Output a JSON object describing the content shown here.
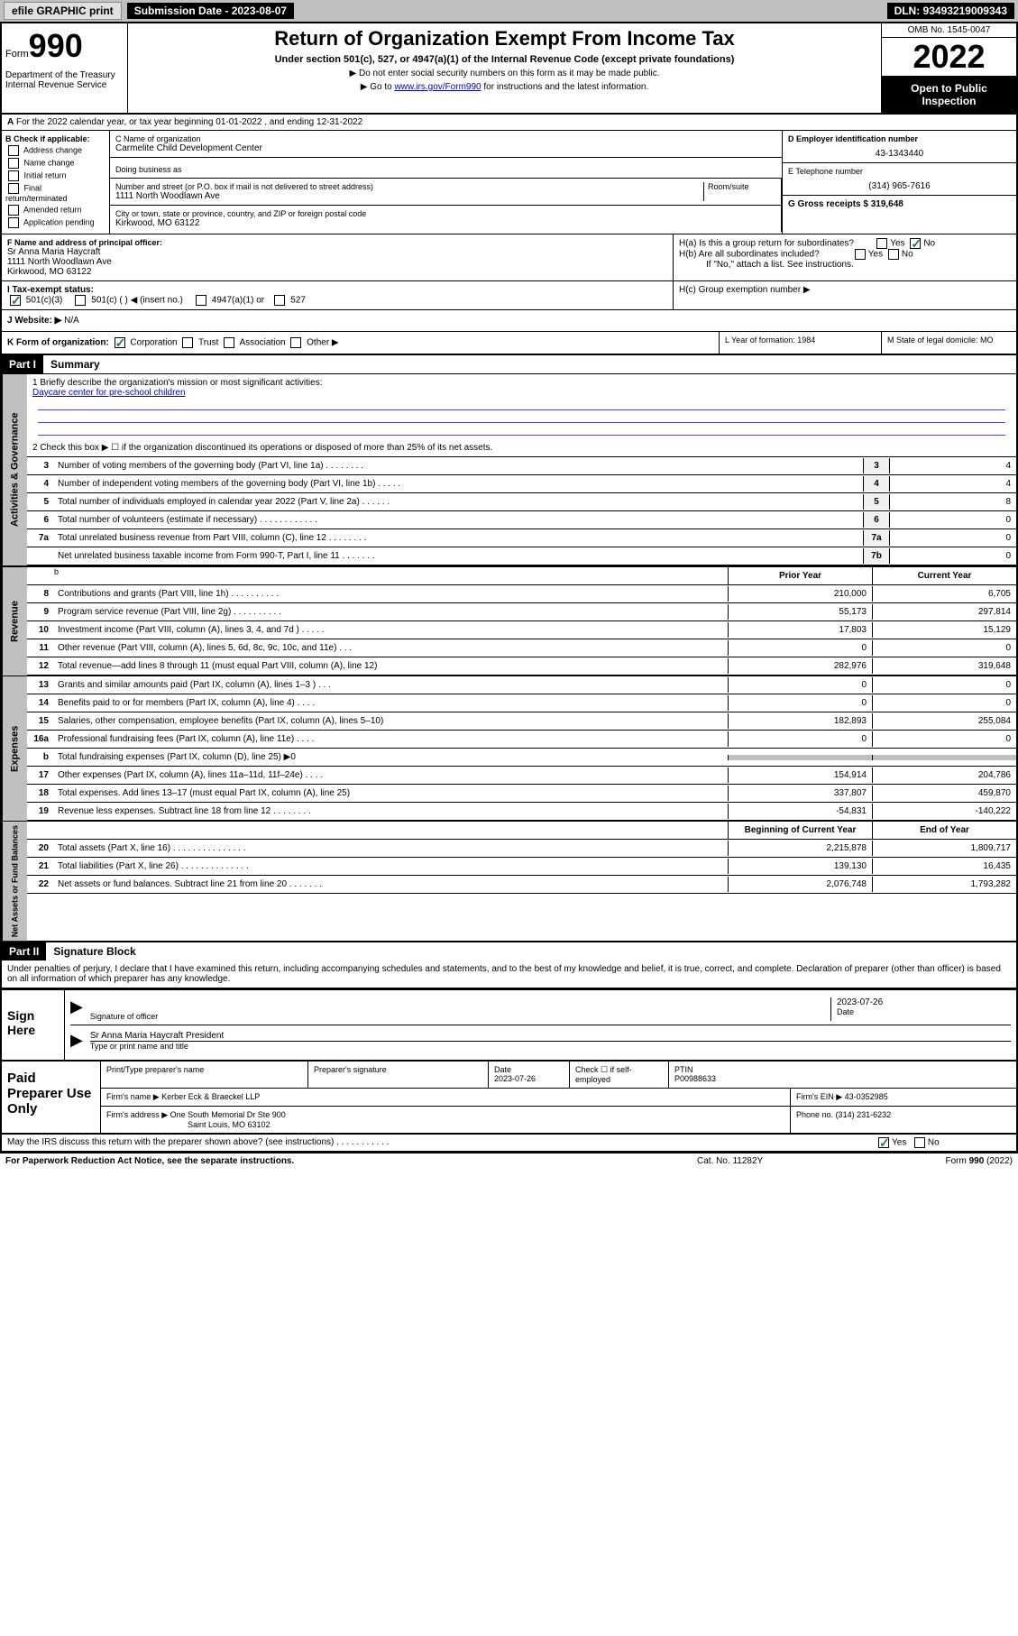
{
  "topbar": {
    "efile": "efile GRAPHIC print",
    "submission": "Submission Date - 2023-08-07",
    "dln": "DLN: 93493219009343"
  },
  "header": {
    "form_label": "Form",
    "form_num": "990",
    "title": "Return of Organization Exempt From Income Tax",
    "subtitle": "Under section 501(c), 527, or 4947(a)(1) of the Internal Revenue Code (except private foundations)",
    "note1": "▶ Do not enter social security numbers on this form as it may be made public.",
    "note2_pre": "▶ Go to ",
    "note2_link": "www.irs.gov/Form990",
    "note2_post": " for instructions and the latest information.",
    "dept": "Department of the Treasury\nInternal Revenue Service",
    "omb": "OMB No. 1545-0047",
    "year": "2022",
    "inspection": "Open to Public Inspection"
  },
  "row_a": {
    "label": "A",
    "text": "For the 2022 calendar year, or tax year beginning 01-01-2022    , and ending 12-31-2022"
  },
  "section_b": {
    "label": "B Check if applicable:",
    "items": [
      "Address change",
      "Name change",
      "Initial return",
      "Final return/terminated",
      "Amended return",
      "Application pending"
    ]
  },
  "section_c": {
    "name_label": "C Name of organization",
    "name_value": "Carmelite Child Development Center",
    "dba_label": "Doing business as",
    "street_label": "Number and street (or P.O. box if mail is not delivered to street address)",
    "street_value": "1111 North Woodlawn Ave",
    "room_label": "Room/suite",
    "city_label": "City or town, state or province, country, and ZIP or foreign postal code",
    "city_value": "Kirkwood, MO  63122"
  },
  "section_d": {
    "label": "D Employer identification number",
    "value": "43-1343440"
  },
  "section_e": {
    "label": "E Telephone number",
    "value": "(314) 965-7616"
  },
  "section_g": {
    "label": "G Gross receipts $ 319,648"
  },
  "section_f": {
    "label": "F Name and address of principal officer:",
    "name": "Sr Anna Maria Haycraft",
    "street": "1111 North Woodlawn Ave",
    "city": "Kirkwood, MO  63122"
  },
  "section_h": {
    "ha": "H(a)  Is this a group return for subordinates?",
    "hb": "H(b)  Are all subordinates included?",
    "hb_note": "If \"No,\" attach a list. See instructions.",
    "hc": "H(c)  Group exemption number ▶",
    "yes": "Yes",
    "no": "No"
  },
  "section_i": {
    "label": "I    Tax-exempt status:",
    "opts": [
      "501(c)(3)",
      "501(c) (  ) ◀ (insert no.)",
      "4947(a)(1) or",
      "527"
    ]
  },
  "section_j": {
    "label": "J   Website: ▶",
    "value": "N/A"
  },
  "section_k": {
    "label": "K Form of organization:",
    "opts": [
      "Corporation",
      "Trust",
      "Association",
      "Other ▶"
    ]
  },
  "section_l": {
    "label": "L Year of formation: 1984"
  },
  "section_m": {
    "label": "M State of legal domicile: MO"
  },
  "part1": {
    "header": "Part I",
    "title": "Summary",
    "line1_label": "1   Briefly describe the organization's mission or most significant activities:",
    "line1_value": "Daycare center for pre-school children",
    "line2": "2   Check this box ▶ ☐  if the organization discontinued its operations or disposed of more than 25% of its net assets.",
    "governance_label": "Activities & Governance",
    "revenue_label": "Revenue",
    "expenses_label": "Expenses",
    "netassets_label": "Net Assets or Fund Balances",
    "prior_year": "Prior Year",
    "current_year": "Current Year",
    "begin_year": "Beginning of Current Year",
    "end_year": "End of Year",
    "gov_lines": [
      {
        "n": "3",
        "d": "Number of voting members of the governing body (Part VI, line 1a)   .   .   .   .   .   .   .   .",
        "an": "3",
        "av": "4"
      },
      {
        "n": "4",
        "d": "Number of independent voting members of the governing body (Part VI, line 1b)   .   .   .   .   .",
        "an": "4",
        "av": "4"
      },
      {
        "n": "5",
        "d": "Total number of individuals employed in calendar year 2022 (Part V, line 2a)   .   .   .   .   .   .",
        "an": "5",
        "av": "8"
      },
      {
        "n": "6",
        "d": "Total number of volunteers (estimate if necessary)   .   .   .   .   .   .   .   .   .   .   .   .",
        "an": "6",
        "av": "0"
      },
      {
        "n": "7a",
        "d": "Total unrelated business revenue from Part VIII, column (C), line 12   .   .   .   .   .   .   .   .",
        "an": "7a",
        "av": "0"
      },
      {
        "n": "",
        "d": "Net unrelated business taxable income from Form 990-T, Part I, line 11   .   .   .   .   .   .   .",
        "an": "7b",
        "av": "0"
      }
    ],
    "rev_lines": [
      {
        "n": "8",
        "d": "Contributions and grants (Part VIII, line 1h)   .   .   .   .   .   .   .   .   .   .",
        "p": "210,000",
        "c": "6,705"
      },
      {
        "n": "9",
        "d": "Program service revenue (Part VIII, line 2g)   .   .   .   .   .   .   .   .   .   .",
        "p": "55,173",
        "c": "297,814"
      },
      {
        "n": "10",
        "d": "Investment income (Part VIII, column (A), lines 3, 4, and 7d )   .   .   .   .   .",
        "p": "17,803",
        "c": "15,129"
      },
      {
        "n": "11",
        "d": "Other revenue (Part VIII, column (A), lines 5, 6d, 8c, 9c, 10c, and 11e)   .   .   .",
        "p": "0",
        "c": "0"
      },
      {
        "n": "12",
        "d": "Total revenue—add lines 8 through 11 (must equal Part VIII, column (A), line 12)",
        "p": "282,976",
        "c": "319,648"
      }
    ],
    "exp_lines": [
      {
        "n": "13",
        "d": "Grants and similar amounts paid (Part IX, column (A), lines 1–3 )   .   .   .",
        "p": "0",
        "c": "0"
      },
      {
        "n": "14",
        "d": "Benefits paid to or for members (Part IX, column (A), line 4)   .   .   .   .",
        "p": "0",
        "c": "0"
      },
      {
        "n": "15",
        "d": "Salaries, other compensation, employee benefits (Part IX, column (A), lines 5–10)",
        "p": "182,893",
        "c": "255,084"
      },
      {
        "n": "16a",
        "d": "Professional fundraising fees (Part IX, column (A), line 11e)   .   .   .   .",
        "p": "0",
        "c": "0"
      },
      {
        "n": "b",
        "d": "Total fundraising expenses (Part IX, column (D), line 25) ▶0",
        "p": "",
        "c": "",
        "gray": true
      },
      {
        "n": "17",
        "d": "Other expenses (Part IX, column (A), lines 11a–11d, 11f–24e)   .   .   .   .",
        "p": "154,914",
        "c": "204,786"
      },
      {
        "n": "18",
        "d": "Total expenses. Add lines 13–17 (must equal Part IX, column (A), line 25)",
        "p": "337,807",
        "c": "459,870"
      },
      {
        "n": "19",
        "d": "Revenue less expenses. Subtract line 18 from line 12   .   .   .   .   .   .   .   .",
        "p": "-54,831",
        "c": "-140,222"
      }
    ],
    "na_lines": [
      {
        "n": "20",
        "d": "Total assets (Part X, line 16)   .   .   .   .   .   .   .   .   .   .   .   .   .   .   .",
        "p": "2,215,878",
        "c": "1,809,717"
      },
      {
        "n": "21",
        "d": "Total liabilities (Part X, line 26)   .   .   .   .   .   .   .   .   .   .   .   .   .   .",
        "p": "139,130",
        "c": "16,435"
      },
      {
        "n": "22",
        "d": "Net assets or fund balances. Subtract line 21 from line 20   .   .   .   .   .   .   .",
        "p": "2,076,748",
        "c": "1,793,282"
      }
    ]
  },
  "part2": {
    "header": "Part II",
    "title": "Signature Block",
    "declaration": "Under penalties of perjury, I declare that I have examined this return, including accompanying schedules and statements, and to the best of my knowledge and belief, it is true, correct, and complete. Declaration of preparer (other than officer) is based on all information of which preparer has any knowledge."
  },
  "sign": {
    "label": "Sign Here",
    "sig_officer": "Signature of officer",
    "date_label": "Date",
    "date_value": "2023-07-26",
    "name_title": "Sr Anna Maria Haycraft  President",
    "name_label": "Type or print name and title"
  },
  "paid": {
    "label": "Paid Preparer Use Only",
    "print_label": "Print/Type preparer's name",
    "sig_label": "Preparer's signature",
    "date_label": "Date",
    "date_value": "2023-07-26",
    "check_label": "Check ☐ if self-employed",
    "ptin_label": "PTIN",
    "ptin_value": "P00988633",
    "firm_name_label": "Firm's name    ▶",
    "firm_name_value": "Kerber Eck & Braeckel LLP",
    "firm_ein_label": "Firm's EIN ▶",
    "firm_ein_value": "43-0352985",
    "firm_addr_label": "Firm's address ▶",
    "firm_addr_value": "One South Memorial Dr Ste 900",
    "firm_city": "Saint Louis, MO  63102",
    "phone_label": "Phone no.",
    "phone_value": "(314) 231-6232"
  },
  "footer": {
    "discuss": "May the IRS discuss this return with the preparer shown above? (see instructions)   .   .   .   .   .   .   .   .   .   .   .",
    "yes": "Yes",
    "no": "No",
    "paperwork": "For Paperwork Reduction Act Notice, see the separate instructions.",
    "catno": "Cat. No. 11282Y",
    "formno": "Form 990 (2022)"
  }
}
